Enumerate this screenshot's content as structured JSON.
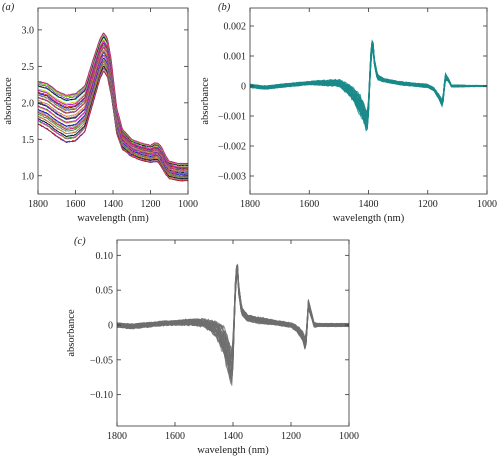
{
  "chart_data": [
    {
      "panel_label": "(a)",
      "type": "line",
      "xlabel": "wavelength (nm)",
      "ylabel": "absorbance",
      "xlim": [
        1800,
        1000
      ],
      "ylim": [
        0.75,
        3.3
      ],
      "x_reversed": true,
      "xticks": [
        1800,
        1600,
        1400,
        1200,
        1000
      ],
      "xtick_labels": [
        "1800",
        "1600",
        "1400",
        "1200",
        "1000"
      ],
      "yticks": [
        1.0,
        1.5,
        2.0,
        2.5,
        3.0
      ],
      "ytick_labels": [
        "1.0",
        "1.5",
        "2.0",
        "2.5",
        "3.0"
      ],
      "grid": false,
      "colors": [
        "#1f1fd0",
        "#d01f1f",
        "#1fa01f",
        "#d0d01f",
        "#d01fd0",
        "#1fd0d0",
        "#111111",
        "#8a4fd0",
        "#d07f1f",
        "#2f8f5f",
        "#7fd01f",
        "#d01f7f",
        "#4f4fa0",
        "#a0a04f"
      ],
      "series_profile": {
        "x": [
          1800,
          1750,
          1700,
          1650,
          1600,
          1550,
          1500,
          1470,
          1450,
          1430,
          1410,
          1400,
          1380,
          1350,
          1300,
          1250,
          1200,
          1180,
          1160,
          1140,
          1120,
          1100,
          1050,
          1000
        ],
        "mean": [
          2.0,
          1.95,
          1.85,
          1.78,
          1.8,
          1.92,
          2.35,
          2.6,
          2.7,
          2.62,
          2.35,
          2.15,
          1.75,
          1.5,
          1.38,
          1.33,
          1.3,
          1.32,
          1.32,
          1.25,
          1.15,
          1.08,
          1.05,
          1.05
        ],
        "spread": [
          0.3,
          0.32,
          0.32,
          0.33,
          0.33,
          0.32,
          0.3,
          0.28,
          0.27,
          0.27,
          0.25,
          0.22,
          0.18,
          0.14,
          0.12,
          0.12,
          0.12,
          0.13,
          0.13,
          0.14,
          0.13,
          0.12,
          0.12,
          0.12
        ],
        "n_spectra": 40
      }
    },
    {
      "panel_label": "(b)",
      "type": "line",
      "xlabel": "wavelength (nm)",
      "ylabel": "absorbance",
      "xlim": [
        1800,
        1000
      ],
      "ylim": [
        -0.0036,
        0.0026
      ],
      "x_reversed": true,
      "xticks": [
        1800,
        1600,
        1400,
        1200,
        1000
      ],
      "xtick_labels": [
        "1800",
        "1600",
        "1400",
        "1200",
        "1000"
      ],
      "yticks": [
        0.002,
        0.001,
        0,
        -0.001,
        -0.002,
        -0.003
      ],
      "ytick_labels": [
        "0.002",
        "0.001",
        "0",
        "−0.001",
        "−0.002",
        "−0.003"
      ],
      "grid": false,
      "color": "#1a8a8a",
      "series_profile": {
        "x": [
          1800,
          1750,
          1700,
          1650,
          1600,
          1550,
          1500,
          1470,
          1450,
          1430,
          1415,
          1405,
          1400,
          1395,
          1390,
          1385,
          1380,
          1370,
          1350,
          1300,
          1250,
          1200,
          1180,
          1160,
          1150,
          1145,
          1140,
          1130,
          1120,
          1100,
          1050,
          1000
        ],
        "mean": [
          0,
          -5e-05,
          0,
          5e-05,
          0.0001,
          0.0001,
          0.0001,
          -0.0001,
          -0.0003,
          -0.0006,
          -0.0009,
          -0.0012,
          -0.0007,
          0.0004,
          0.0013,
          0.0014,
          0.0008,
          0.0003,
          0.0002,
          0.0001,
          5e-05,
          0,
          -0.0001,
          -0.0004,
          -0.0006,
          -0.0001,
          0.0003,
          0.0002,
          0,
          0,
          0,
          0
        ],
        "spread": [
          5e-05,
          5e-05,
          5e-05,
          5e-05,
          5e-05,
          8e-05,
          0.0001,
          0.00015,
          0.0002,
          0.0003,
          0.0003,
          0.0003,
          0.00025,
          0.0002,
          0.0002,
          0.00015,
          0.0001,
          8e-05,
          5e-05,
          5e-05,
          5e-05,
          5e-05,
          5e-05,
          8e-05,
          0.0001,
          0.0001,
          0.0001,
          5e-05,
          3e-05,
          3e-05,
          2e-05,
          2e-05
        ]
      }
    },
    {
      "panel_label": "(c)",
      "type": "line",
      "xlabel": "wavelength (nm)",
      "ylabel": "absorbance",
      "xlim": [
        1800,
        1000
      ],
      "ylim": [
        -0.145,
        0.122
      ],
      "x_reversed": true,
      "xticks": [
        1800,
        1600,
        1400,
        1200,
        1000
      ],
      "xtick_labels": [
        "1800",
        "1600",
        "1400",
        "1200",
        "1000"
      ],
      "yticks": [
        0.1,
        0.05,
        0,
        -0.05,
        -0.1
      ],
      "ytick_labels": [
        "0.10",
        "0.05",
        "0",
        "−0.05",
        "−0.10"
      ],
      "grid": false,
      "color": "#6e6e6e",
      "series_profile": {
        "x": [
          1800,
          1750,
          1700,
          1650,
          1600,
          1550,
          1500,
          1470,
          1450,
          1430,
          1415,
          1405,
          1400,
          1395,
          1390,
          1385,
          1380,
          1370,
          1350,
          1300,
          1250,
          1200,
          1180,
          1160,
          1150,
          1145,
          1140,
          1130,
          1120,
          1100,
          1050,
          1000
        ],
        "mean": [
          0,
          -0.002,
          0,
          0.002,
          0.003,
          0.004,
          0.003,
          -0.003,
          -0.01,
          -0.025,
          -0.045,
          -0.065,
          -0.04,
          0.02,
          0.07,
          0.085,
          0.05,
          0.02,
          0.01,
          0.006,
          0.003,
          0,
          -0.005,
          -0.015,
          -0.03,
          -0.005,
          0.03,
          0.015,
          0,
          0,
          0,
          0
        ],
        "spread": [
          0.003,
          0.003,
          0.003,
          0.003,
          0.003,
          0.004,
          0.005,
          0.008,
          0.012,
          0.02,
          0.022,
          0.024,
          0.02,
          0.012,
          0.01,
          0.008,
          0.007,
          0.005,
          0.004,
          0.004,
          0.003,
          0.003,
          0.004,
          0.006,
          0.008,
          0.007,
          0.006,
          0.004,
          0.003,
          0.002,
          0.002,
          0.002
        ]
      }
    }
  ]
}
